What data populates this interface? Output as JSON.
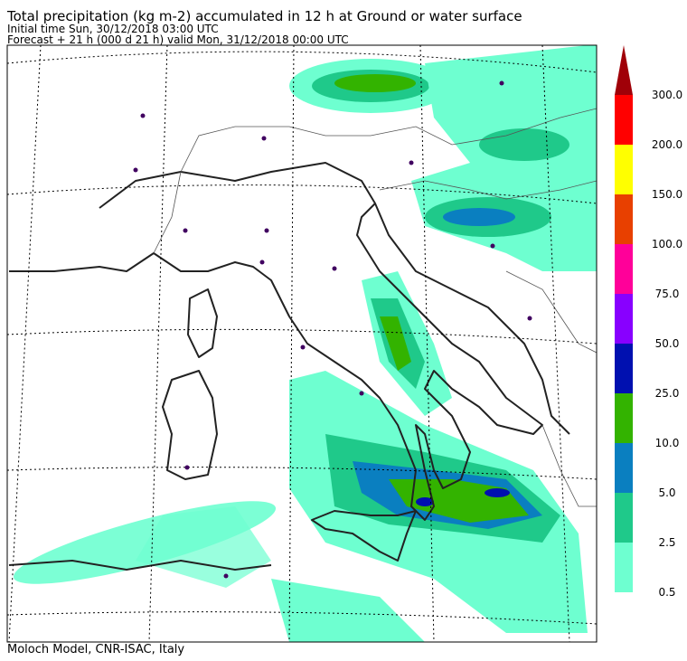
{
  "header": {
    "title": "Total precipitation (kg m-2) accumulated in  12 h at Ground or water surface",
    "initial_time": "Initial time  Sun, 30/12/2018  03:00 UTC",
    "forecast": "Forecast  +  21 h  (000 d 21 h)  valid Mon, 31/12/2018 00:00 UTC"
  },
  "footer": "Moloch Model, CNR-ISAC, Italy",
  "colorbar": {
    "labels": [
      "0.5",
      "2.5",
      "5.0",
      "10.0",
      "25.0",
      "50.0",
      "75.0",
      "100.0",
      "150.0",
      "200.0",
      "300.0"
    ],
    "colors": [
      "#6effd0",
      "#1fc98a",
      "#0a7fc0",
      "#33b300",
      "#0010b0",
      "#8800ff",
      "#ff0099",
      "#e84000",
      "#ffff00",
      "#ff0000"
    ],
    "over_color": "#a00008"
  }
}
